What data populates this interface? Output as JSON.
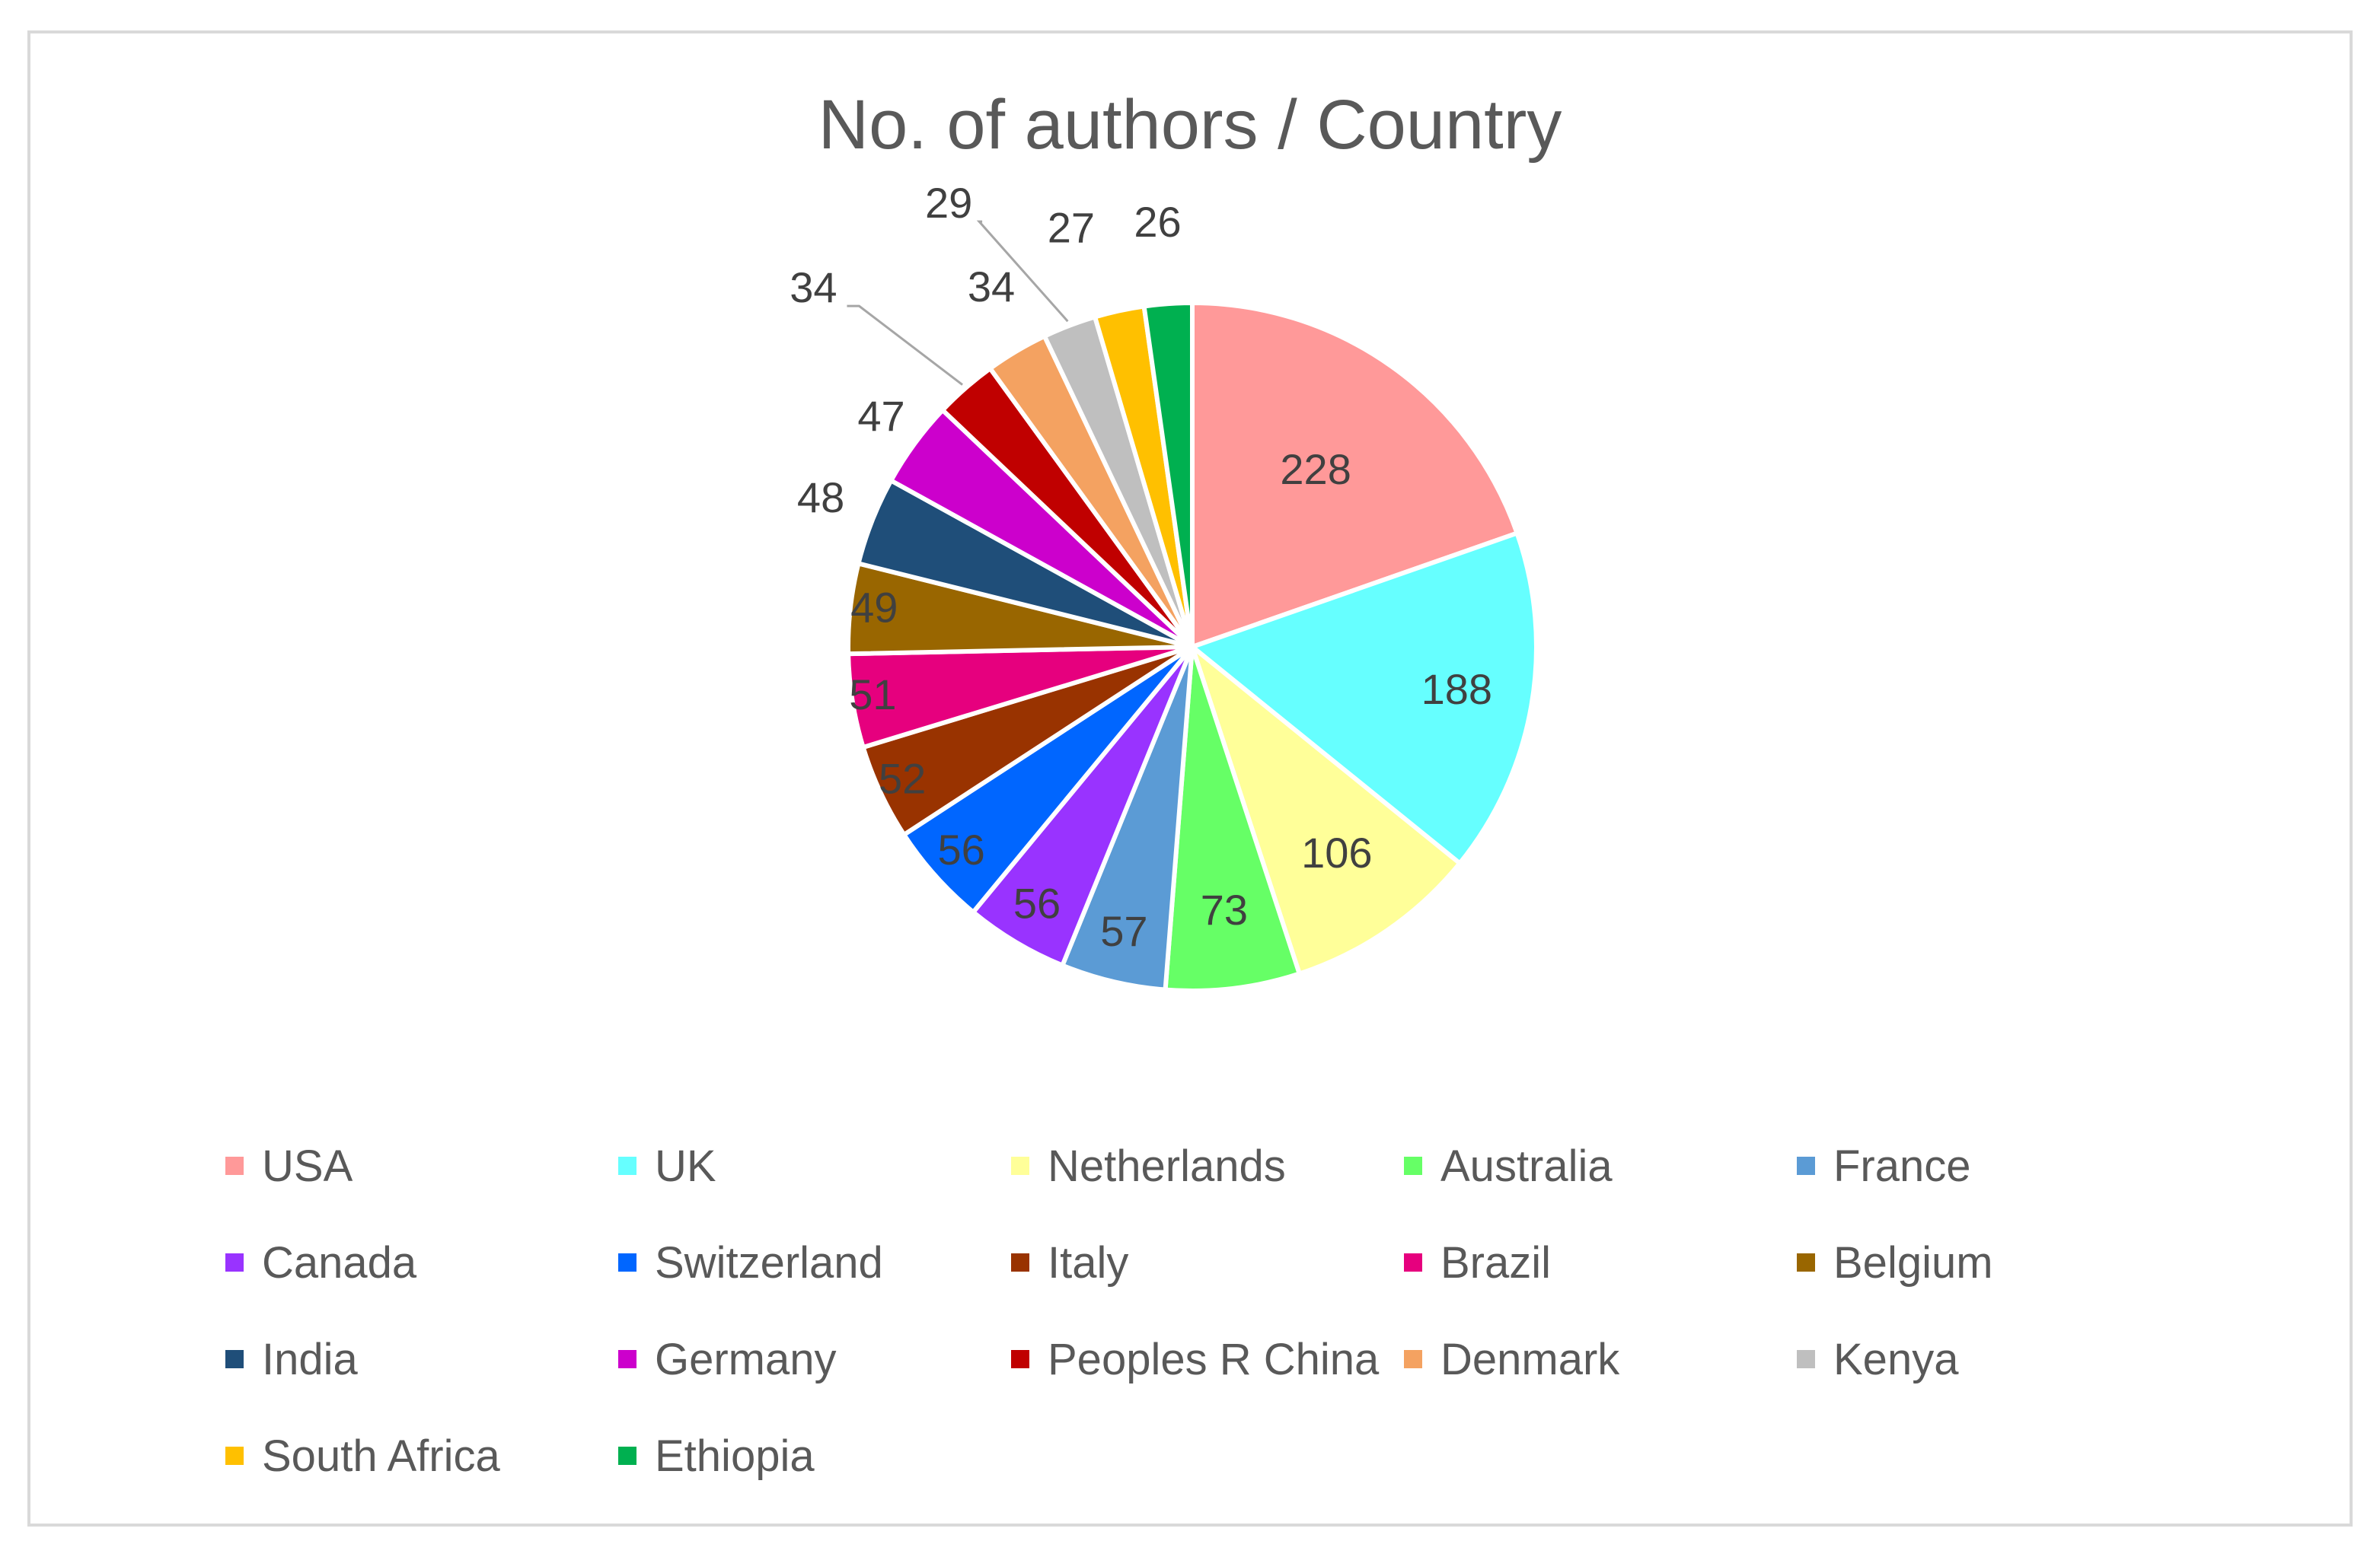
{
  "chart_data": {
    "type": "pie",
    "title": "No. of authors / Country",
    "legend_position": "bottom",
    "categories": [
      "USA",
      "UK",
      "Netherlands",
      "Australia",
      "France",
      "Canada",
      "Switzerland",
      "Italy",
      "Brazil",
      "Belgium",
      "India",
      "Germany",
      "Peoples R China",
      "Denmark",
      "Kenya",
      "South Africa",
      "Ethiopia"
    ],
    "values": [
      228,
      188,
      106,
      73,
      57,
      56,
      56,
      52,
      51,
      49,
      48,
      47,
      34,
      34,
      29,
      27,
      26
    ],
    "colors": [
      "#ff9999",
      "#66ffff",
      "#ffff99",
      "#66ff66",
      "#5b9bd5",
      "#9933ff",
      "#0066ff",
      "#993300",
      "#e6007e",
      "#996600",
      "#1f4e79",
      "#cc00cc",
      "#c00000",
      "#f4a261",
      "#bfbfbf",
      "#ffc000",
      "#00b050"
    ]
  }
}
